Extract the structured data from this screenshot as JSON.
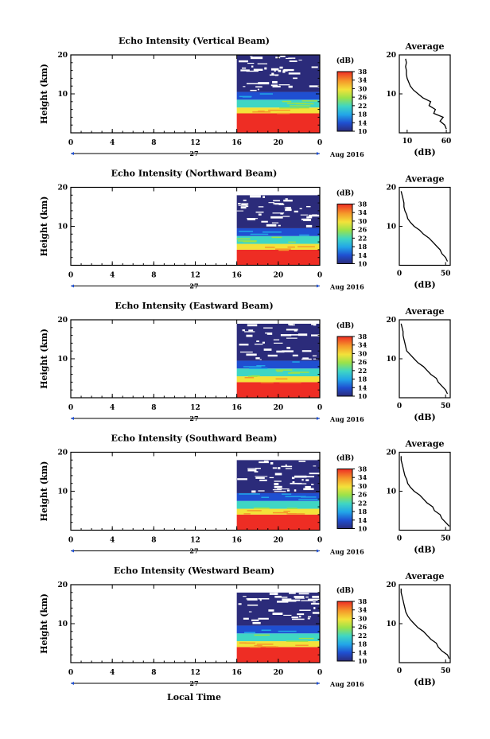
{
  "figure": {
    "xlabel": "Local Time",
    "date_label": "Aug 2016",
    "day_label": "27",
    "average_title": "Average",
    "colorbar_unit": "(dB)",
    "average_xlabel": "(dB)"
  },
  "chart_data": [
    {
      "type": "heatmap",
      "title": "Echo Intensity (Vertical Beam)",
      "ylabel": "Height (km)",
      "xlabel": "Local Time",
      "x_ticks": [
        "0",
        "4",
        "8",
        "12",
        "16",
        "20",
        "0"
      ],
      "x_range_hours": [
        0,
        24
      ],
      "y_ticks": [
        "10",
        "20"
      ],
      "y_range_km": [
        0,
        20
      ],
      "data_start_hour": 16,
      "colorbar": {
        "label": "(dB)",
        "ticks": [
          "10",
          "14",
          "18",
          "22",
          "26",
          "30",
          "34",
          "38"
        ],
        "range": [
          10,
          38
        ]
      },
      "layers": [
        {
          "height_km": [
            0,
            5
          ],
          "db": 38
        },
        {
          "height_km": [
            5,
            6.5
          ],
          "db": 30
        },
        {
          "height_km": [
            6.5,
            8.5
          ],
          "db": 22
        },
        {
          "height_km": [
            8.5,
            10.5
          ],
          "db": 16
        },
        {
          "height_km": [
            10.5,
            20
          ],
          "db": 10
        }
      ],
      "average_profile": {
        "xlabel": "(dB)",
        "x_ticks": [
          "10",
          "60"
        ],
        "xlim": [
          0,
          65
        ],
        "y_ticks": [
          "10",
          "20"
        ],
        "height_km": [
          1,
          2,
          3,
          4,
          5,
          6,
          7,
          8,
          9,
          10,
          11,
          12,
          13,
          14,
          15,
          16,
          17,
          18,
          19
        ],
        "db": [
          60,
          58,
          52,
          56,
          44,
          46,
          38,
          40,
          30,
          24,
          18,
          14,
          12,
          10,
          9,
          9,
          8,
          9,
          8
        ]
      }
    },
    {
      "type": "heatmap",
      "title": "Echo Intensity (Northward Beam)",
      "ylabel": "Height (km)",
      "xlabel": "Local Time",
      "x_ticks": [
        "0",
        "4",
        "8",
        "12",
        "16",
        "20",
        "0"
      ],
      "x_range_hours": [
        0,
        24
      ],
      "y_ticks": [
        "10",
        "20"
      ],
      "y_range_km": [
        0,
        20
      ],
      "data_start_hour": 16,
      "colorbar": {
        "label": "(dB)",
        "ticks": [
          "10",
          "14",
          "18",
          "22",
          "26",
          "30",
          "34",
          "38"
        ],
        "range": [
          10,
          38
        ]
      },
      "layers": [
        {
          "height_km": [
            0,
            4
          ],
          "db": 38
        },
        {
          "height_km": [
            4,
            5.5
          ],
          "db": 30
        },
        {
          "height_km": [
            5.5,
            7.5
          ],
          "db": 22
        },
        {
          "height_km": [
            7.5,
            9.5
          ],
          "db": 16
        },
        {
          "height_km": [
            9.5,
            18
          ],
          "db": 10
        }
      ],
      "average_profile": {
        "xlabel": "(dB)",
        "x_ticks": [
          "0",
          "50"
        ],
        "xlim": [
          0,
          55
        ],
        "y_ticks": [
          "10",
          "20"
        ],
        "height_km": [
          1,
          2,
          3,
          4,
          5,
          6,
          7,
          8,
          9,
          10,
          11,
          12,
          13,
          14,
          15,
          16,
          17,
          18,
          19
        ],
        "db": [
          52,
          50,
          46,
          44,
          40,
          36,
          32,
          26,
          22,
          16,
          12,
          9,
          8,
          6,
          5,
          5,
          4,
          3,
          2
        ]
      }
    },
    {
      "type": "heatmap",
      "title": "Echo Intensity (Eastward Beam)",
      "ylabel": "Height (km)",
      "xlabel": "Local Time",
      "x_ticks": [
        "0",
        "4",
        "8",
        "12",
        "16",
        "20",
        "0"
      ],
      "x_range_hours": [
        0,
        24
      ],
      "y_ticks": [
        "10",
        "20"
      ],
      "y_range_km": [
        0,
        20
      ],
      "data_start_hour": 16,
      "colorbar": {
        "label": "(dB)",
        "ticks": [
          "10",
          "14",
          "18",
          "22",
          "26",
          "30",
          "34",
          "38"
        ],
        "range": [
          10,
          38
        ]
      },
      "layers": [
        {
          "height_km": [
            0,
            4
          ],
          "db": 38
        },
        {
          "height_km": [
            4,
            5.5
          ],
          "db": 30
        },
        {
          "height_km": [
            5.5,
            7.5
          ],
          "db": 22
        },
        {
          "height_km": [
            7.5,
            9.5
          ],
          "db": 16
        },
        {
          "height_km": [
            9.5,
            19
          ],
          "db": 10
        }
      ],
      "average_profile": {
        "xlabel": "(dB)",
        "x_ticks": [
          "0",
          "50"
        ],
        "xlim": [
          0,
          55
        ],
        "y_ticks": [
          "10",
          "20"
        ],
        "height_km": [
          1,
          2,
          3,
          4,
          5,
          6,
          7,
          8,
          9,
          10,
          11,
          12,
          13,
          14,
          15,
          16,
          17,
          18,
          19
        ],
        "db": [
          52,
          50,
          46,
          42,
          40,
          34,
          30,
          26,
          20,
          16,
          12,
          8,
          7,
          6,
          5,
          4,
          4,
          3,
          2
        ]
      }
    },
    {
      "type": "heatmap",
      "title": "Echo Intensity (Southward Beam)",
      "ylabel": "Height (km)",
      "xlabel": "Local Time",
      "x_ticks": [
        "0",
        "4",
        "8",
        "12",
        "16",
        "20",
        "0"
      ],
      "x_range_hours": [
        0,
        24
      ],
      "y_ticks": [
        "10",
        "20"
      ],
      "y_range_km": [
        0,
        20
      ],
      "data_start_hour": 16,
      "colorbar": {
        "label": "(dB)",
        "ticks": [
          "10",
          "14",
          "18",
          "22",
          "26",
          "30",
          "34",
          "38"
        ],
        "range": [
          10,
          38
        ]
      },
      "layers": [
        {
          "height_km": [
            0,
            4
          ],
          "db": 38
        },
        {
          "height_km": [
            4,
            5.5
          ],
          "db": 30
        },
        {
          "height_km": [
            5.5,
            7.5
          ],
          "db": 22
        },
        {
          "height_km": [
            7.5,
            9.5
          ],
          "db": 16
        },
        {
          "height_km": [
            9.5,
            18
          ],
          "db": 10
        }
      ],
      "average_profile": {
        "xlabel": "(dB)",
        "x_ticks": [
          "0",
          "50"
        ],
        "xlim": [
          0,
          55
        ],
        "y_ticks": [
          "10",
          "20"
        ],
        "height_km": [
          1,
          2,
          3,
          4,
          5,
          6,
          7,
          8,
          9,
          10,
          11,
          12,
          13,
          14,
          15,
          16,
          17,
          18,
          19
        ],
        "db": [
          54,
          50,
          46,
          44,
          38,
          36,
          30,
          26,
          22,
          16,
          12,
          9,
          8,
          6,
          5,
          4,
          3,
          2,
          2
        ]
      }
    },
    {
      "type": "heatmap",
      "title": "Echo Intensity (Westward Beam)",
      "ylabel": "Height (km)",
      "xlabel": "Local Time",
      "x_ticks": [
        "0",
        "4",
        "8",
        "12",
        "16",
        "20",
        "0"
      ],
      "x_range_hours": [
        0,
        24
      ],
      "y_ticks": [
        "10",
        "20"
      ],
      "y_range_km": [
        0,
        20
      ],
      "data_start_hour": 16,
      "colorbar": {
        "label": "(dB)",
        "ticks": [
          "10",
          "14",
          "18",
          "22",
          "26",
          "30",
          "34",
          "38"
        ],
        "range": [
          10,
          38
        ]
      },
      "layers": [
        {
          "height_km": [
            0,
            4
          ],
          "db": 38
        },
        {
          "height_km": [
            4,
            5.5
          ],
          "db": 30
        },
        {
          "height_km": [
            5.5,
            7.5
          ],
          "db": 22
        },
        {
          "height_km": [
            7.5,
            9.5
          ],
          "db": 16
        },
        {
          "height_km": [
            9.5,
            18
          ],
          "db": 10
        }
      ],
      "average_profile": {
        "xlabel": "(dB)",
        "x_ticks": [
          "0",
          "50"
        ],
        "xlim": [
          0,
          55
        ],
        "y_ticks": [
          "10",
          "20"
        ],
        "height_km": [
          1,
          2,
          3,
          4,
          5,
          6,
          7,
          8,
          9,
          10,
          11,
          12,
          13,
          14,
          15,
          16,
          17,
          18,
          19
        ],
        "db": [
          54,
          52,
          46,
          42,
          40,
          34,
          30,
          26,
          20,
          16,
          12,
          9,
          7,
          6,
          5,
          4,
          3,
          2,
          2
        ]
      }
    }
  ]
}
